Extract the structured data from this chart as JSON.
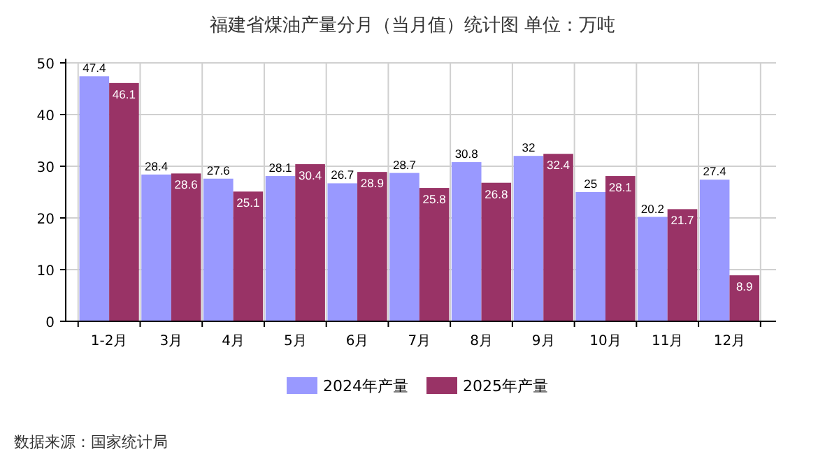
{
  "chart_data": {
    "type": "bar",
    "title": "福建省煤油产量分月（当月值）统计图 单位：万吨",
    "categories": [
      "1-2月",
      "3月",
      "4月",
      "5月",
      "6月",
      "7月",
      "8月",
      "9月",
      "10月",
      "11月",
      "12月"
    ],
    "series": [
      {
        "name": "2024年产量",
        "color": "#9999ff",
        "values": [
          47.4,
          28.4,
          27.6,
          28.1,
          26.7,
          28.7,
          30.8,
          32,
          25,
          20.2,
          27.4
        ]
      },
      {
        "name": "2025年产量",
        "color": "#993366",
        "values": [
          46.1,
          28.6,
          25.1,
          30.4,
          28.9,
          25.8,
          26.8,
          32.4,
          28.1,
          21.7,
          8.9
        ]
      }
    ],
    "ylim": [
      0,
      50
    ],
    "yticks": [
      0,
      10,
      20,
      30,
      40,
      50
    ],
    "grid": true,
    "legend": "bottom",
    "data_labels": true,
    "annotations": [
      "数据来源：国家统计局"
    ]
  }
}
